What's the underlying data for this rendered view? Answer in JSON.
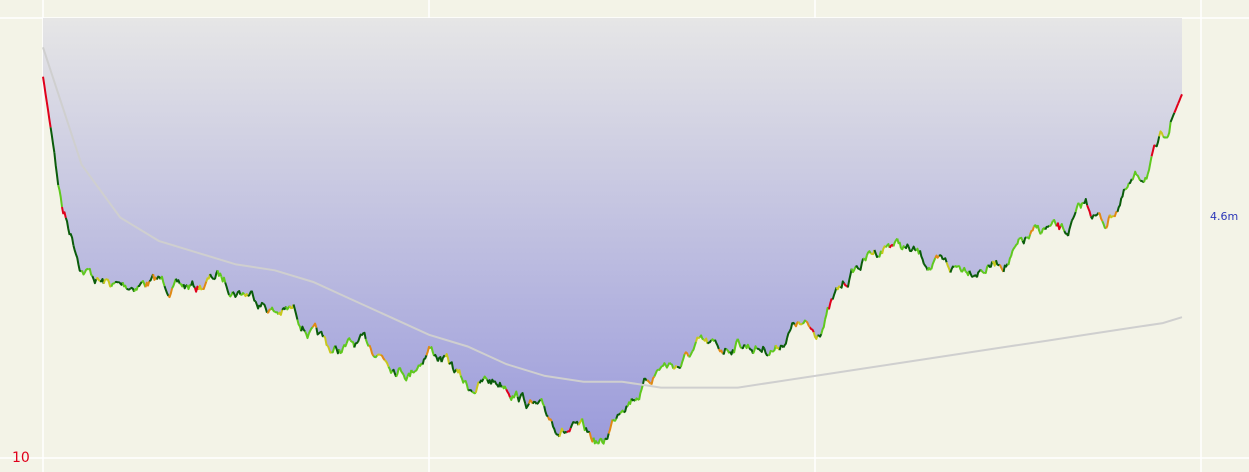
{
  "chart_data": {
    "type": "area",
    "colors": {
      "background": "#f3f3e7",
      "grid": "#ffffff",
      "area_top": "#e6e6e6",
      "area_bottom": "#9b9bdb",
      "trend_line": "#cfcfcf",
      "y_tick": "#e0001b",
      "end_label": "#2b36b8",
      "pace_colors": [
        "#0a5c0a",
        "#5fc81e",
        "#c8c81e",
        "#e08a14",
        "#e0001b"
      ]
    },
    "grid": true,
    "y_axis": {
      "inverted": true,
      "tick_labels": [
        "10"
      ]
    },
    "end_label": "4.6m",
    "series": [
      {
        "kind": "area",
        "x": [
          0,
          0.5,
          1,
          1.5,
          2,
          2.5,
          3,
          3.5,
          4,
          4.5,
          5,
          5.5,
          6,
          6.5,
          7,
          7.5,
          8,
          8.5,
          9,
          9.5,
          10,
          10.5,
          11,
          11.5,
          12,
          12.5,
          13,
          13.5,
          14,
          14.5,
          15,
          15.5,
          16,
          16.5,
          17,
          17.5,
          18,
          18.5,
          19,
          19.5,
          20,
          20.5,
          21,
          21.5,
          22,
          22.5,
          23,
          23.5,
          24,
          24.5,
          25,
          25.5,
          26,
          26.5,
          27,
          27.5,
          28,
          28.5,
          29,
          29.5,
          30
        ],
        "values": [
          4.0,
          6.2,
          7.2,
          7.5,
          7.6,
          7.5,
          7.5,
          7.6,
          7.6,
          7.4,
          7.6,
          7.7,
          8.0,
          8.0,
          8.4,
          8.7,
          8.6,
          8.6,
          8.8,
          9.0,
          8.6,
          8.9,
          9.3,
          9.2,
          9.2,
          9.5,
          9.8,
          10.0,
          10.1,
          10.3,
          9.5,
          9.3,
          8.9,
          8.9,
          8.6,
          8.7,
          8.5,
          8.6,
          8.6,
          8.2,
          8.4,
          7.8,
          7.3,
          7.0,
          6.8,
          7.0,
          7.2,
          7.3,
          7.2,
          7.2,
          7.1,
          6.8,
          6.6,
          6.7,
          6.2,
          6.5,
          6.0,
          5.7,
          5.1,
          4.3,
          3.0
        ]
      },
      {
        "kind": "trend",
        "x": [
          0,
          1,
          2,
          3,
          4,
          5,
          6,
          7,
          8,
          9,
          10,
          11,
          12,
          13,
          14,
          15,
          16,
          17,
          18,
          19,
          20,
          21,
          22,
          23,
          24,
          25,
          26,
          27,
          28,
          29,
          29.5
        ],
        "values": [
          3.5,
          5.5,
          6.4,
          6.8,
          7.0,
          7.2,
          7.3,
          7.5,
          7.8,
          8.1,
          8.4,
          8.6,
          8.9,
          9.1,
          9.2,
          9.2,
          9.3,
          9.3,
          9.3,
          9.2,
          9.1,
          9.0,
          8.9,
          8.8,
          8.7,
          8.6,
          8.5,
          8.4,
          8.3,
          8.2,
          8.1
        ]
      }
    ]
  }
}
